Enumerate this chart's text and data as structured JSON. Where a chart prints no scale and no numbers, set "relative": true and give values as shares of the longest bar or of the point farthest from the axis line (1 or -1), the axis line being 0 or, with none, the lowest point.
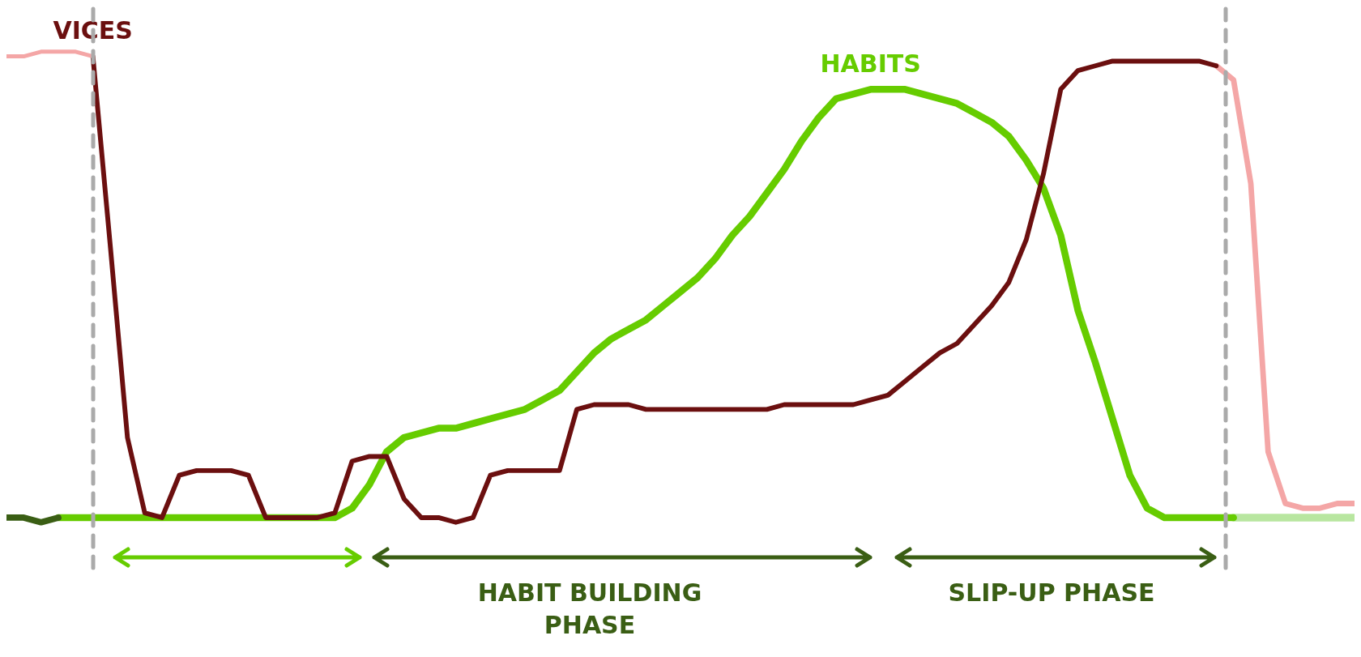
{
  "chart_data": {
    "type": "line",
    "relative": true,
    "line_style": "solid",
    "categories": [
      null,
      null,
      null,
      null,
      null,
      null,
      null,
      null,
      null,
      null,
      null,
      null,
      null,
      null,
      null,
      null,
      null,
      null,
      null,
      null,
      null,
      null,
      null,
      null,
      null,
      null,
      null,
      null,
      null,
      null,
      null,
      null,
      null,
      null,
      null,
      null,
      null,
      null,
      null,
      null,
      null,
      null,
      null,
      null,
      null,
      null,
      null,
      null,
      null,
      null,
      null,
      null,
      null,
      null,
      null,
      null,
      null,
      null,
      null,
      null,
      null,
      null,
      null,
      null,
      null,
      null,
      null,
      null,
      null,
      null,
      null,
      null,
      null,
      null,
      null,
      null,
      null,
      null,
      null
    ],
    "series": [
      {
        "color": "#f4a6a6",
        "values": [
          0.99,
          0.99,
          1.0,
          1.0,
          1.0,
          0.99,
          null,
          null,
          null,
          null,
          null,
          null,
          null,
          null,
          null,
          null,
          null,
          null,
          null,
          null,
          null,
          null,
          null,
          null,
          null,
          null,
          null,
          null,
          null,
          null,
          null,
          null,
          null,
          null,
          null,
          null,
          null,
          null,
          null,
          null,
          null,
          null,
          null,
          null,
          null,
          null,
          null,
          null,
          null,
          null,
          null,
          null,
          null,
          null,
          null,
          null,
          null,
          null,
          null,
          null,
          null,
          null,
          null,
          null,
          null,
          null,
          null,
          null,
          null,
          null,
          null,
          null,
          null,
          null,
          null,
          null,
          null,
          null,
          null
        ]
      },
      {
        "name": "VICES",
        "color": "#6b0f0f",
        "values": [
          null,
          null,
          null,
          null,
          null,
          0.99,
          0.59,
          0.18,
          0.02,
          0.01,
          0.1,
          0.11,
          0.11,
          0.11,
          0.1,
          0.01,
          0.01,
          0.01,
          0.01,
          0.02,
          0.13,
          0.14,
          0.14,
          0.05,
          0.01,
          0.01,
          0,
          0.01,
          0.1,
          0.11,
          0.11,
          0.11,
          0.11,
          0.24,
          0.25,
          0.25,
          0.25,
          0.24,
          0.24,
          0.24,
          0.24,
          0.24,
          0.24,
          0.24,
          0.24,
          0.25,
          0.25,
          0.25,
          0.25,
          0.25,
          0.26,
          0.27,
          0.3,
          0.33,
          0.36,
          0.38,
          0.42,
          0.46,
          0.51,
          0.6,
          0.74,
          0.92,
          0.96,
          0.97,
          0.98,
          0.98,
          0.98,
          0.98,
          0.98,
          0.98,
          0.97,
          null,
          null,
          null,
          null,
          null,
          null,
          null,
          null
        ]
      },
      {
        "color": "#f4a6a6",
        "values": [
          null,
          null,
          null,
          null,
          null,
          null,
          null,
          null,
          null,
          null,
          null,
          null,
          null,
          null,
          null,
          null,
          null,
          null,
          null,
          null,
          null,
          null,
          null,
          null,
          null,
          null,
          null,
          null,
          null,
          null,
          null,
          null,
          null,
          null,
          null,
          null,
          null,
          null,
          null,
          null,
          null,
          null,
          null,
          null,
          null,
          null,
          null,
          null,
          null,
          null,
          null,
          null,
          null,
          null,
          null,
          null,
          null,
          null,
          null,
          null,
          null,
          null,
          null,
          null,
          null,
          null,
          null,
          null,
          null,
          null,
          0.97,
          0.94,
          0.72,
          0.15,
          0.04,
          0.03,
          0.03,
          0.04,
          0.04
        ]
      },
      {
        "color": "#3a5e14",
        "values": [
          0.01,
          0.01,
          0,
          0.01,
          null,
          null,
          null,
          null,
          null,
          null,
          null,
          null,
          null,
          null,
          null,
          null,
          null,
          null,
          null,
          null,
          null,
          null,
          null,
          null,
          null,
          null,
          null,
          null,
          null,
          null,
          null,
          null,
          null,
          null,
          null,
          null,
          null,
          null,
          null,
          null,
          null,
          null,
          null,
          null,
          null,
          null,
          null,
          null,
          null,
          null,
          null,
          null,
          null,
          null,
          null,
          null,
          null,
          null,
          null,
          null,
          null,
          null,
          null,
          null,
          null,
          null,
          null,
          null,
          null,
          null,
          null,
          null,
          null,
          null,
          null,
          null,
          null,
          null,
          null
        ]
      },
      {
        "name": "HABITS",
        "color": "#66cc00",
        "values": [
          null,
          null,
          null,
          0.01,
          0.01,
          0.01,
          0.01,
          0.01,
          0.01,
          0.01,
          0.01,
          0.01,
          0.01,
          0.01,
          0.01,
          0.01,
          0.01,
          0.01,
          0.01,
          0.01,
          0.03,
          0.08,
          0.15,
          0.18,
          0.19,
          0.2,
          0.2,
          0.21,
          0.22,
          0.23,
          0.24,
          0.26,
          0.28,
          0.32,
          0.36,
          0.39,
          0.41,
          0.43,
          0.46,
          0.49,
          0.52,
          0.56,
          0.61,
          0.65,
          0.7,
          0.75,
          0.81,
          0.86,
          0.9,
          0.91,
          0.92,
          0.92,
          0.92,
          0.91,
          0.9,
          0.89,
          0.87,
          0.85,
          0.82,
          0.77,
          0.71,
          0.61,
          0.45,
          0.34,
          0.22,
          0.1,
          0.03,
          0.01,
          0.01,
          0.01,
          0.01,
          0.01,
          null,
          null,
          null,
          null,
          null,
          null,
          null
        ]
      },
      {
        "color": "#b8e6a0",
        "values": [
          null,
          null,
          null,
          null,
          null,
          null,
          null,
          null,
          null,
          null,
          null,
          null,
          null,
          null,
          null,
          null,
          null,
          null,
          null,
          null,
          null,
          null,
          null,
          null,
          null,
          null,
          null,
          null,
          null,
          null,
          null,
          null,
          null,
          null,
          null,
          null,
          null,
          null,
          null,
          null,
          null,
          null,
          null,
          null,
          null,
          null,
          null,
          null,
          null,
          null,
          null,
          null,
          null,
          null,
          null,
          null,
          null,
          null,
          null,
          null,
          null,
          null,
          null,
          null,
          null,
          null,
          null,
          null,
          null,
          null,
          null,
          0.01,
          0.01,
          0.01,
          0.01,
          0.01,
          0.01,
          0.01,
          0.01
        ]
      }
    ],
    "annotations": [
      "HABIT BUILDING PHASE",
      "SLIP-UP PHASE"
    ]
  }
}
